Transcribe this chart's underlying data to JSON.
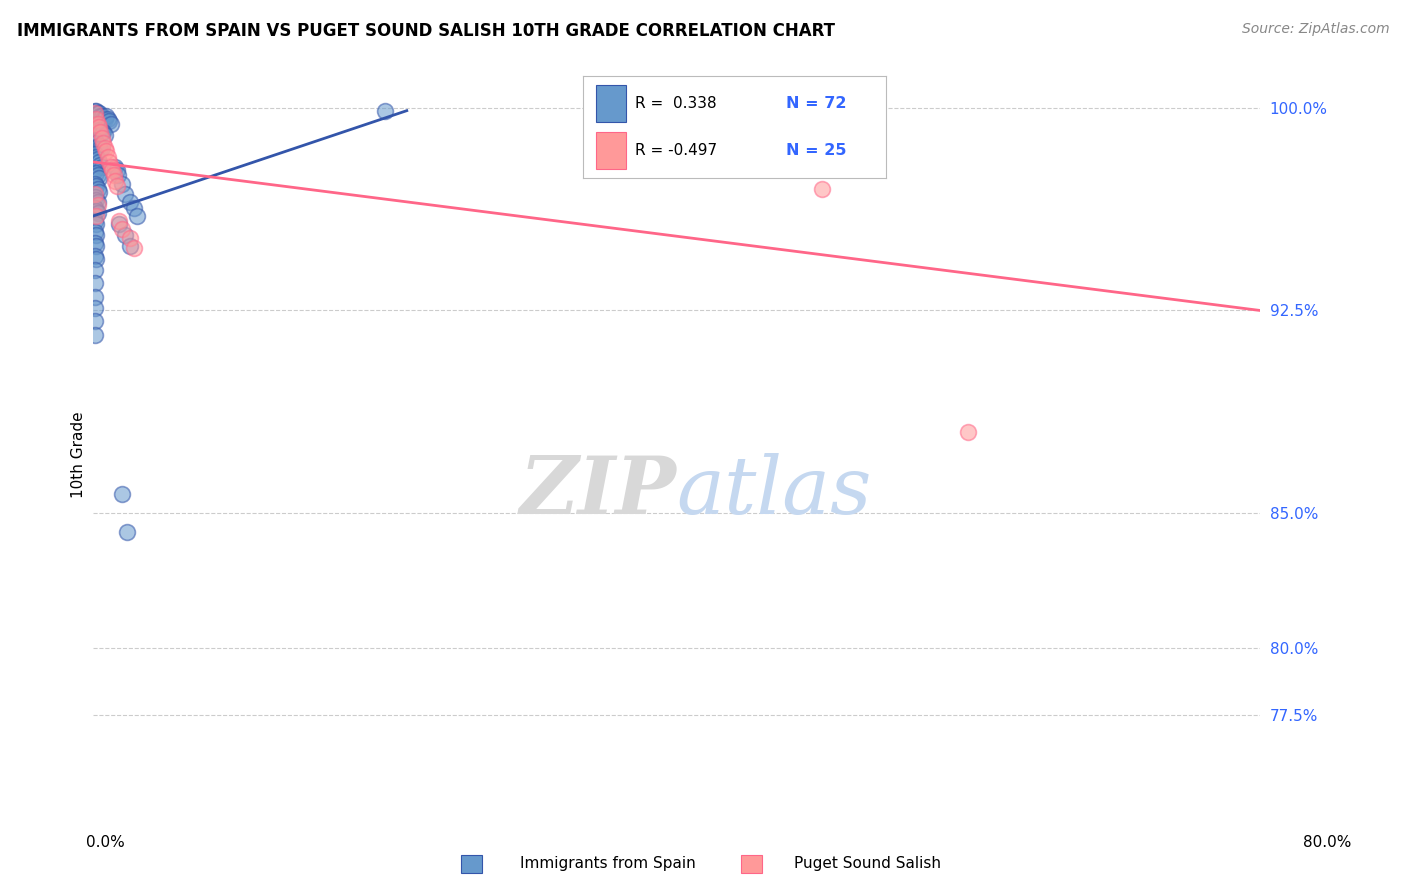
{
  "title": "IMMIGRANTS FROM SPAIN VS PUGET SOUND SALISH 10TH GRADE CORRELATION CHART",
  "source": "Source: ZipAtlas.com",
  "ylabel": "10th Grade",
  "yticks": [
    0.775,
    0.8,
    0.85,
    0.925,
    1.0
  ],
  "ytick_labels": [
    "77.5%",
    "80.0%",
    "85.0%",
    "92.5%",
    "100.0%"
  ],
  "xmin": 0.0,
  "xmax": 0.8,
  "ymin": 0.735,
  "ymax": 1.008,
  "color_blue": "#6699CC",
  "color_pink": "#FF9999",
  "line_blue": "#3355AA",
  "line_pink": "#FF6688",
  "blue_scatter": [
    [
      0.001,
      0.999
    ],
    [
      0.002,
      0.999
    ],
    [
      0.003,
      0.998
    ],
    [
      0.004,
      0.998
    ],
    [
      0.005,
      0.997
    ],
    [
      0.006,
      0.997
    ],
    [
      0.007,
      0.996
    ],
    [
      0.008,
      0.996
    ],
    [
      0.009,
      0.997
    ],
    [
      0.01,
      0.996
    ],
    [
      0.011,
      0.995
    ],
    [
      0.012,
      0.994
    ],
    [
      0.001,
      0.994
    ],
    [
      0.002,
      0.993
    ],
    [
      0.003,
      0.993
    ],
    [
      0.004,
      0.992
    ],
    [
      0.005,
      0.992
    ],
    [
      0.006,
      0.991
    ],
    [
      0.007,
      0.991
    ],
    [
      0.008,
      0.99
    ],
    [
      0.001,
      0.988
    ],
    [
      0.002,
      0.987
    ],
    [
      0.003,
      0.986
    ],
    [
      0.004,
      0.986
    ],
    [
      0.005,
      0.985
    ],
    [
      0.006,
      0.985
    ],
    [
      0.001,
      0.983
    ],
    [
      0.002,
      0.982
    ],
    [
      0.003,
      0.981
    ],
    [
      0.004,
      0.98
    ],
    [
      0.005,
      0.979
    ],
    [
      0.006,
      0.978
    ],
    [
      0.001,
      0.977
    ],
    [
      0.002,
      0.976
    ],
    [
      0.003,
      0.975
    ],
    [
      0.004,
      0.974
    ],
    [
      0.001,
      0.972
    ],
    [
      0.002,
      0.971
    ],
    [
      0.003,
      0.97
    ],
    [
      0.004,
      0.969
    ],
    [
      0.001,
      0.967
    ],
    [
      0.002,
      0.966
    ],
    [
      0.003,
      0.965
    ],
    [
      0.001,
      0.963
    ],
    [
      0.002,
      0.962
    ],
    [
      0.003,
      0.961
    ],
    [
      0.001,
      0.958
    ],
    [
      0.002,
      0.957
    ],
    [
      0.001,
      0.954
    ],
    [
      0.002,
      0.953
    ],
    [
      0.001,
      0.95
    ],
    [
      0.002,
      0.949
    ],
    [
      0.001,
      0.945
    ],
    [
      0.002,
      0.944
    ],
    [
      0.001,
      0.94
    ],
    [
      0.001,
      0.935
    ],
    [
      0.001,
      0.93
    ],
    [
      0.001,
      0.926
    ],
    [
      0.001,
      0.921
    ],
    [
      0.001,
      0.916
    ],
    [
      0.015,
      0.978
    ],
    [
      0.016,
      0.977
    ],
    [
      0.017,
      0.975
    ],
    [
      0.02,
      0.972
    ],
    [
      0.022,
      0.968
    ],
    [
      0.025,
      0.965
    ],
    [
      0.028,
      0.963
    ],
    [
      0.03,
      0.96
    ],
    [
      0.018,
      0.957
    ],
    [
      0.022,
      0.953
    ],
    [
      0.025,
      0.949
    ],
    [
      0.02,
      0.857
    ],
    [
      0.023,
      0.843
    ],
    [
      0.2,
      0.999
    ]
  ],
  "pink_scatter": [
    [
      0.001,
      0.998
    ],
    [
      0.002,
      0.996
    ],
    [
      0.003,
      0.994
    ],
    [
      0.004,
      0.993
    ],
    [
      0.005,
      0.991
    ],
    [
      0.006,
      0.989
    ],
    [
      0.007,
      0.987
    ],
    [
      0.008,
      0.985
    ],
    [
      0.009,
      0.984
    ],
    [
      0.01,
      0.982
    ],
    [
      0.011,
      0.98
    ],
    [
      0.012,
      0.978
    ],
    [
      0.013,
      0.977
    ],
    [
      0.014,
      0.975
    ],
    [
      0.015,
      0.973
    ],
    [
      0.016,
      0.971
    ],
    [
      0.001,
      0.968
    ],
    [
      0.003,
      0.964
    ],
    [
      0.002,
      0.96
    ],
    [
      0.018,
      0.958
    ],
    [
      0.02,
      0.955
    ],
    [
      0.025,
      0.952
    ],
    [
      0.5,
      0.97
    ],
    [
      0.6,
      0.88
    ],
    [
      0.028,
      0.948
    ]
  ],
  "blue_line_x": [
    0.0,
    0.215
  ],
  "blue_line_y": [
    0.96,
    0.999
  ],
  "pink_line_x": [
    0.0,
    0.8
  ],
  "pink_line_y": [
    0.98,
    0.925
  ]
}
